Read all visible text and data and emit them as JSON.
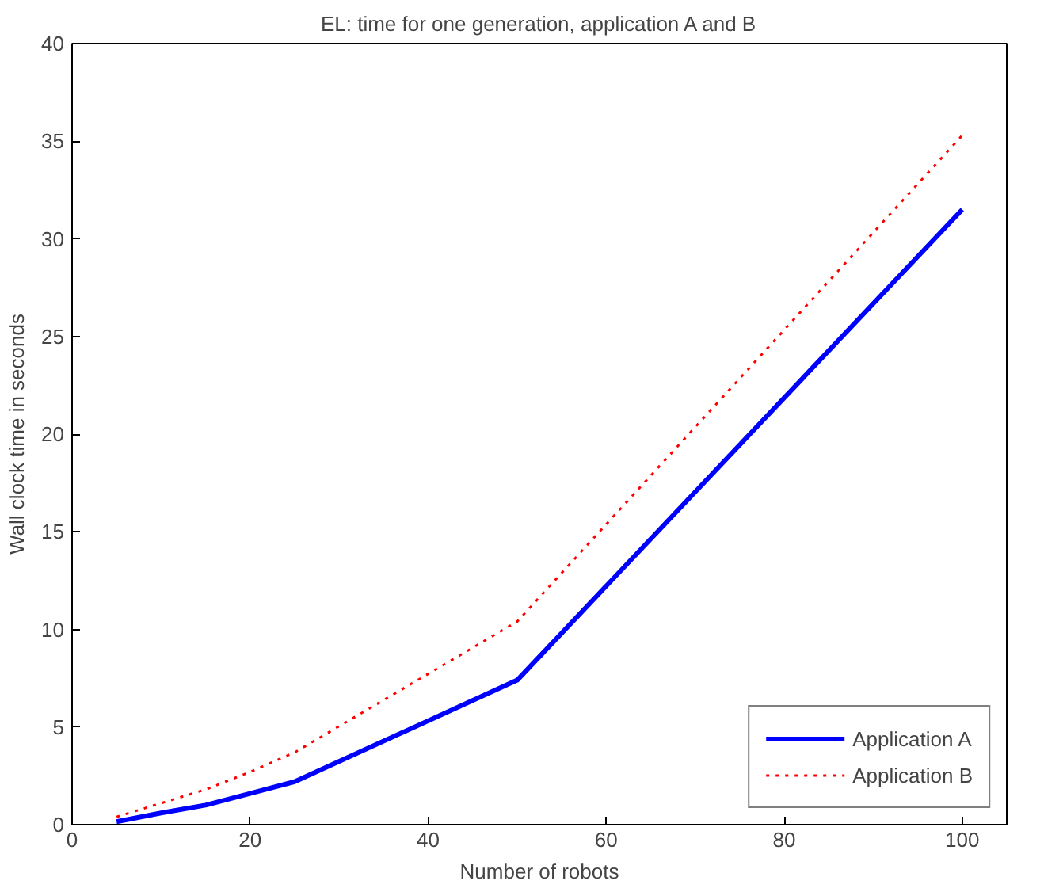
{
  "chart_data": {
    "type": "line",
    "title": "EL: time for one generation, application A and B",
    "xlabel": "Number of robots",
    "ylabel": "Wall clock time in seconds",
    "x": [
      5,
      10,
      15,
      20,
      25,
      50,
      100
    ],
    "series": [
      {
        "name": "Application A",
        "color": "#0000ff",
        "line_style": "solid",
        "values": [
          0.15,
          0.6,
          1.0,
          1.6,
          2.2,
          7.4,
          31.5
        ]
      },
      {
        "name": "Application B",
        "color": "#ff0000",
        "line_style": "dotted",
        "values": [
          0.4,
          1.1,
          1.8,
          2.7,
          3.7,
          10.4,
          35.3
        ]
      }
    ],
    "xlim": [
      0,
      105
    ],
    "xticks": [
      0,
      20,
      40,
      60,
      80,
      100
    ],
    "ylim": [
      0,
      40
    ],
    "yticks": [
      0,
      5,
      10,
      15,
      20,
      25,
      30,
      35,
      40
    ],
    "grid": false,
    "legend": "bottom right"
  }
}
